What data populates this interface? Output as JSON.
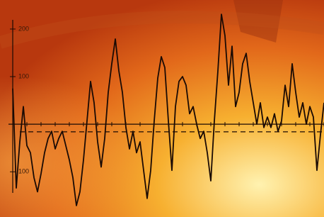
{
  "chart_data": {
    "type": "line",
    "values": [
      75,
      -134,
      -37,
      37,
      -45,
      -60,
      -112,
      -142,
      -104,
      -60,
      -30,
      -15,
      -52,
      -30,
      -15,
      -45,
      -75,
      -112,
      -171,
      -142,
      -75,
      7,
      90,
      45,
      -37,
      -90,
      -30,
      67,
      127,
      179,
      112,
      67,
      -7,
      -52,
      -15,
      -60,
      -37,
      -97,
      -156,
      -97,
      7,
      97,
      142,
      119,
      7,
      -97,
      37,
      90,
      100,
      82,
      22,
      37,
      0,
      -30,
      -15,
      -60,
      -119,
      7,
      112,
      231,
      186,
      82,
      164,
      37,
      67,
      127,
      149,
      90,
      45,
      0,
      45,
      -7,
      15,
      -7,
      22,
      -15,
      7,
      82,
      37,
      127,
      67,
      15,
      45,
      0,
      37,
      15,
      -97,
      -22,
      45
    ],
    "color": "#1a0a04",
    "ylim": [
      -195,
      261
    ],
    "yticks": [
      200,
      100,
      {
        "value": -100,
        "label": "100"
      }
    ],
    "reference_line": -16
  }
}
